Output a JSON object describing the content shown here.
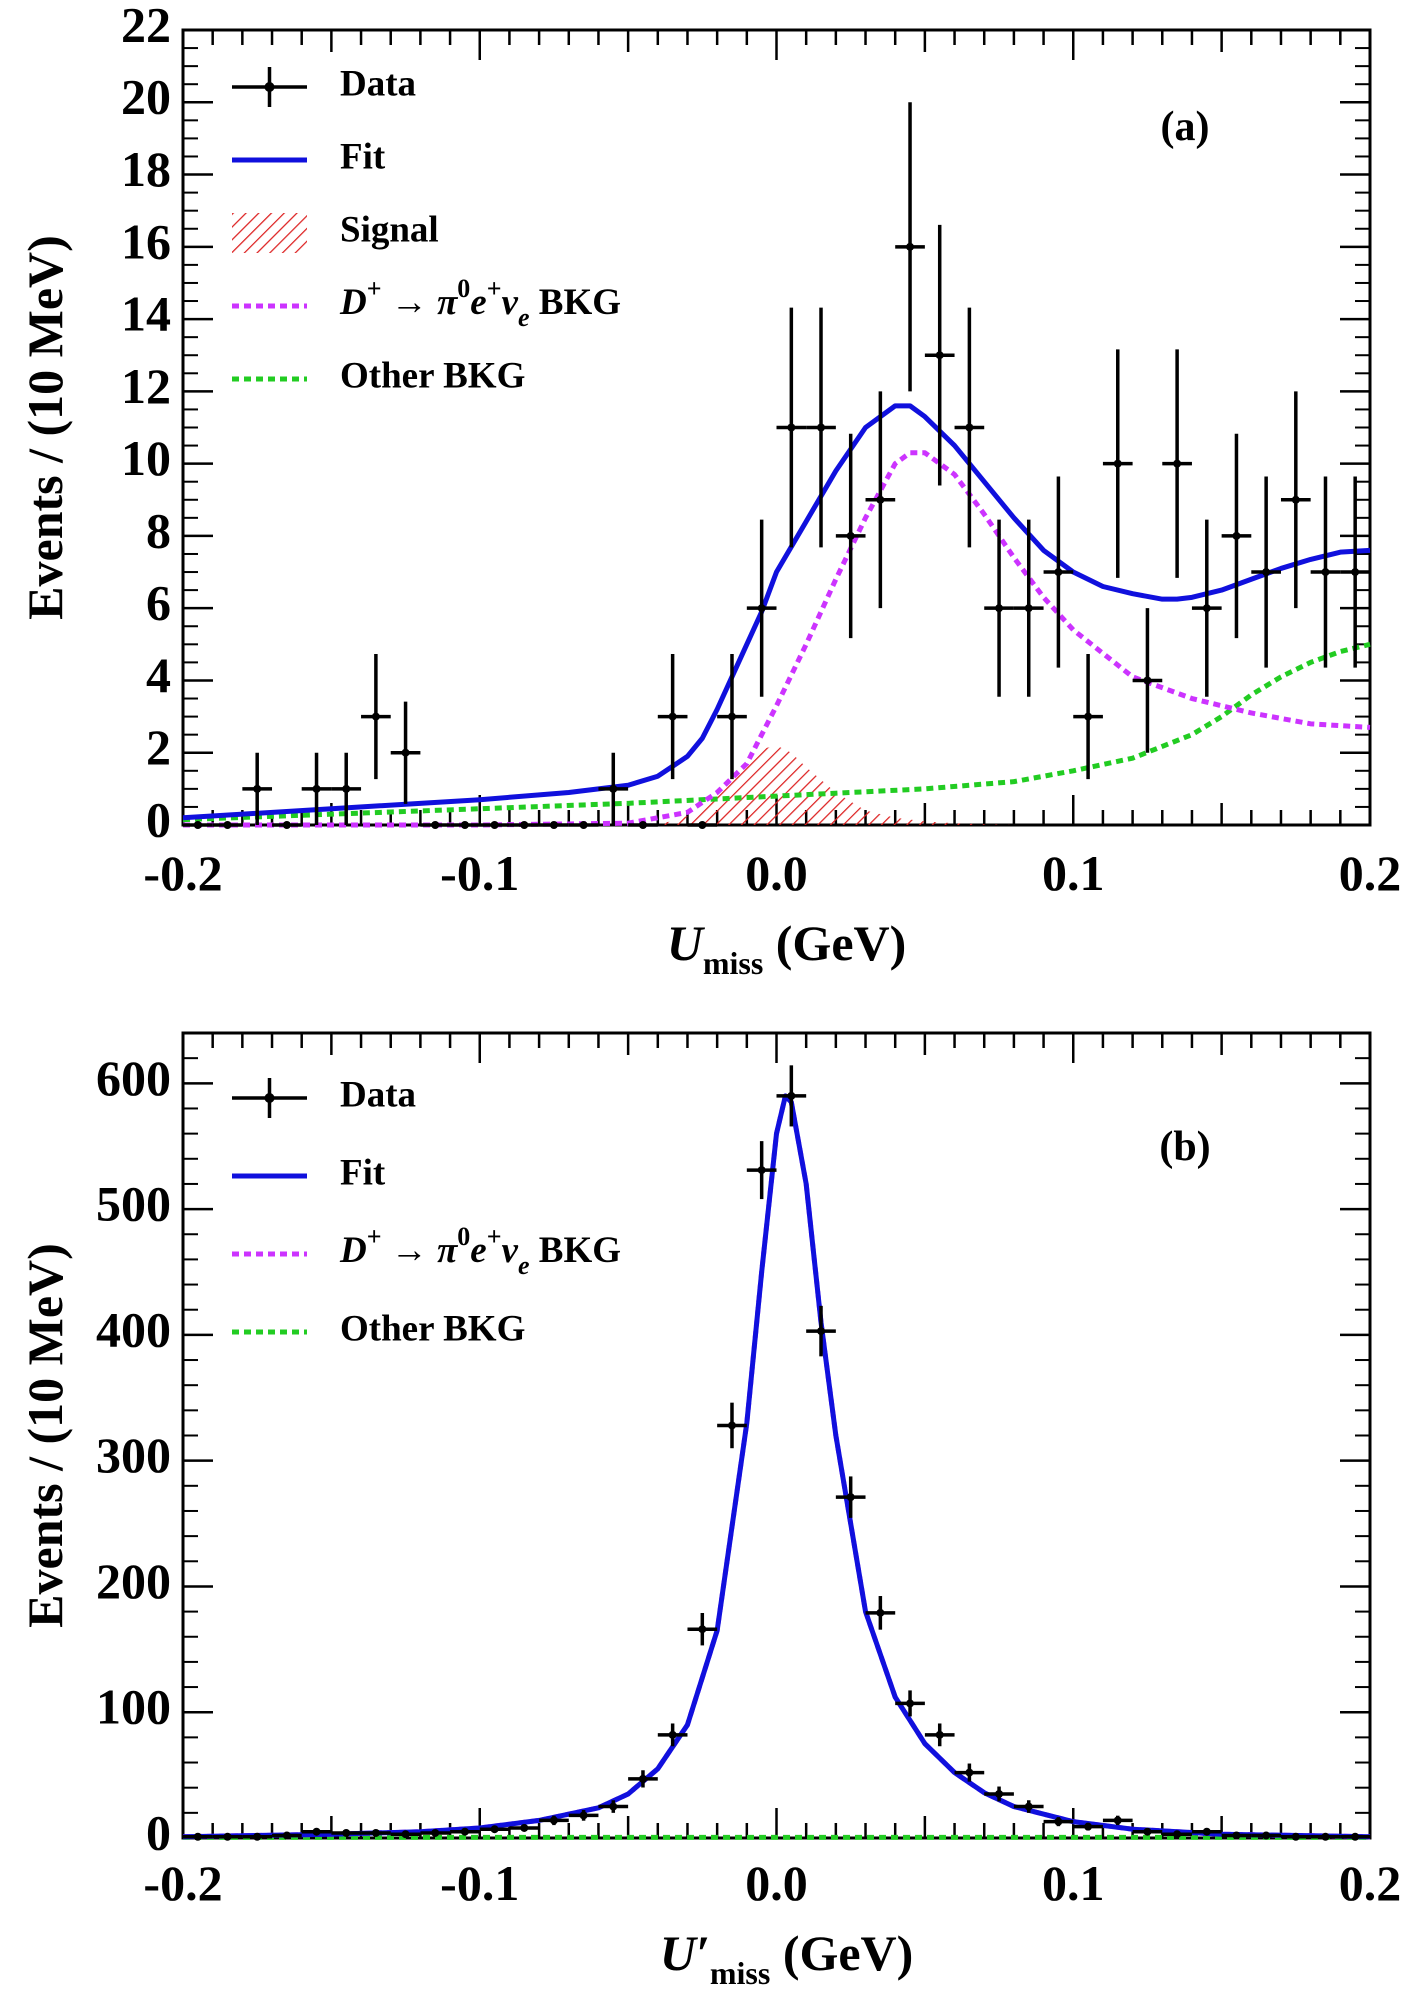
{
  "chart_data": [
    {
      "type": "scatter",
      "panel_label": "(a)",
      "xlabel": {
        "main": "U",
        "sub": "miss",
        "unit": " (GeV)"
      },
      "ylabel": "Events / (10 MeV)",
      "xlim": [
        -0.2,
        0.2
      ],
      "ylim": [
        0,
        22
      ],
      "xticks": [
        -0.2,
        -0.1,
        0.0,
        0.1,
        0.2
      ],
      "xtick_labels": [
        "-0.2",
        "-0.1",
        "0.0",
        "0.1",
        "0.2"
      ],
      "yticks": [
        0,
        2,
        4,
        6,
        8,
        10,
        12,
        14,
        16,
        18,
        20,
        22
      ],
      "ytick_labels": [
        "0",
        "2",
        "4",
        "6",
        "8",
        "10",
        "12",
        "14",
        "16",
        "18",
        "20",
        "22"
      ],
      "legend_position": "top-left",
      "legend": [
        {
          "key": "data",
          "label": "Data",
          "style": "marker"
        },
        {
          "key": "fit",
          "label": "Fit",
          "style": "solid"
        },
        {
          "key": "signal",
          "label": "Signal",
          "style": "hatch"
        },
        {
          "key": "pi0bkg",
          "label": "D+ → π0e+νe BKG",
          "style": "dotted"
        },
        {
          "key": "other",
          "label": "Other BKG",
          "style": "dotted"
        }
      ],
      "data_points": {
        "x": [
          -0.195,
          -0.185,
          -0.175,
          -0.165,
          -0.155,
          -0.145,
          -0.135,
          -0.125,
          -0.115,
          -0.105,
          -0.095,
          -0.085,
          -0.075,
          -0.065,
          -0.055,
          -0.045,
          -0.035,
          -0.025,
          -0.015,
          -0.005,
          0.005,
          0.015,
          0.025,
          0.035,
          0.045,
          0.055,
          0.065,
          0.075,
          0.085,
          0.095,
          0.105,
          0.115,
          0.125,
          0.135,
          0.145,
          0.155,
          0.165,
          0.175,
          0.185,
          0.195
        ],
        "y": [
          0,
          0,
          1,
          0,
          1,
          1,
          3,
          2,
          0,
          0,
          0,
          0,
          0,
          0,
          1,
          0,
          3,
          0,
          3,
          6,
          11,
          11,
          8,
          9,
          16,
          13,
          11,
          6,
          6,
          7,
          3,
          10,
          4,
          10,
          6,
          8,
          7,
          9,
          7,
          7
        ]
      },
      "series": [
        {
          "name": "Fit",
          "color": "#1010dd",
          "x": [
            -0.2,
            -0.15,
            -0.1,
            -0.07,
            -0.05,
            -0.04,
            -0.03,
            -0.025,
            -0.02,
            -0.015,
            -0.01,
            -0.005,
            0.0,
            0.01,
            0.02,
            0.03,
            0.04,
            0.045,
            0.05,
            0.06,
            0.07,
            0.08,
            0.09,
            0.1,
            0.11,
            0.12,
            0.13,
            0.135,
            0.14,
            0.15,
            0.16,
            0.17,
            0.18,
            0.19,
            0.2
          ],
          "y": [
            0.2,
            0.45,
            0.7,
            0.9,
            1.1,
            1.35,
            1.9,
            2.4,
            3.2,
            4.1,
            5.0,
            5.9,
            7.0,
            8.4,
            9.8,
            11.0,
            11.6,
            11.6,
            11.3,
            10.5,
            9.5,
            8.5,
            7.6,
            7.0,
            6.6,
            6.4,
            6.25,
            6.25,
            6.3,
            6.5,
            6.8,
            7.1,
            7.35,
            7.55,
            7.6
          ]
        },
        {
          "name": "D+ → π0e+νe BKG",
          "color": "#cc33ff",
          "x": [
            -0.2,
            -0.1,
            -0.05,
            -0.03,
            -0.02,
            -0.01,
            0.0,
            0.01,
            0.02,
            0.03,
            0.04,
            0.045,
            0.05,
            0.06,
            0.07,
            0.08,
            0.09,
            0.1,
            0.12,
            0.14,
            0.16,
            0.18,
            0.2
          ],
          "y": [
            0,
            0,
            0.05,
            0.35,
            0.9,
            1.7,
            3.3,
            5.0,
            6.8,
            8.5,
            10.0,
            10.3,
            10.3,
            9.7,
            8.6,
            7.4,
            6.3,
            5.4,
            4.1,
            3.5,
            3.1,
            2.8,
            2.7
          ]
        },
        {
          "name": "Other BKG",
          "color": "#22cc22",
          "x": [
            -0.2,
            -0.15,
            -0.1,
            -0.05,
            0.0,
            0.05,
            0.08,
            0.1,
            0.12,
            0.14,
            0.15,
            0.16,
            0.17,
            0.18,
            0.19,
            0.2
          ],
          "y": [
            0.15,
            0.3,
            0.45,
            0.6,
            0.8,
            1.0,
            1.2,
            1.5,
            1.85,
            2.5,
            3.0,
            3.6,
            4.1,
            4.5,
            4.8,
            5.0
          ]
        }
      ],
      "signal": {
        "name": "Signal",
        "color": "#dd2222",
        "x": [
          -0.045,
          -0.035,
          -0.025,
          -0.015,
          -0.01,
          -0.005,
          0.0,
          0.005,
          0.01,
          0.02,
          0.03,
          0.04,
          0.05,
          0.06,
          0.07,
          0.08
        ],
        "y": [
          0,
          0.1,
          0.4,
          1.2,
          1.7,
          2.1,
          2.2,
          2.0,
          1.6,
          0.9,
          0.4,
          0.2,
          0.1,
          0.05,
          0.02,
          0
        ]
      }
    },
    {
      "type": "scatter",
      "panel_label": "(b)",
      "xlabel": {
        "main": "U′",
        "sub": "miss",
        "unit": " (GeV)"
      },
      "ylabel": "Events / (10 MeV)",
      "xlim": [
        -0.2,
        0.2
      ],
      "ylim": [
        0,
        640
      ],
      "xticks": [
        -0.2,
        -0.1,
        0.0,
        0.1,
        0.2
      ],
      "xtick_labels": [
        "-0.2",
        "-0.1",
        "0.0",
        "0.1",
        "0.2"
      ],
      "yticks": [
        0,
        100,
        200,
        300,
        400,
        500,
        600
      ],
      "ytick_labels": [
        "0",
        "100",
        "200",
        "300",
        "400",
        "500",
        "600"
      ],
      "legend_position": "top-left",
      "legend": [
        {
          "key": "data",
          "label": "Data",
          "style": "marker"
        },
        {
          "key": "fit",
          "label": "Fit",
          "style": "solid"
        },
        {
          "key": "pi0bkg",
          "label": "D+ → π0e+νe BKG",
          "style": "dotted"
        },
        {
          "key": "other",
          "label": "Other BKG",
          "style": "dotted"
        }
      ],
      "data_points": {
        "x": [
          -0.195,
          -0.185,
          -0.175,
          -0.165,
          -0.155,
          -0.145,
          -0.135,
          -0.125,
          -0.115,
          -0.105,
          -0.095,
          -0.085,
          -0.075,
          -0.065,
          -0.055,
          -0.045,
          -0.035,
          -0.025,
          -0.015,
          -0.005,
          0.005,
          0.015,
          0.025,
          0.035,
          0.045,
          0.055,
          0.065,
          0.075,
          0.085,
          0.095,
          0.105,
          0.115,
          0.125,
          0.135,
          0.145,
          0.155,
          0.165,
          0.175,
          0.185,
          0.195
        ],
        "y": [
          1,
          1,
          1,
          2,
          5,
          4,
          4,
          3,
          4,
          5,
          7,
          8,
          14,
          18,
          25,
          47,
          82,
          166,
          328,
          531,
          590,
          403,
          271,
          179,
          107,
          82,
          52,
          35,
          25,
          13,
          9,
          14,
          5,
          3,
          5,
          2,
          2,
          1,
          1,
          1
        ]
      },
      "series": [
        {
          "name": "Fit",
          "color": "#1010dd",
          "x": [
            -0.2,
            -0.15,
            -0.12,
            -0.1,
            -0.08,
            -0.06,
            -0.05,
            -0.04,
            -0.03,
            -0.02,
            -0.01,
            -0.005,
            0.0,
            0.003,
            0.005,
            0.01,
            0.015,
            0.02,
            0.03,
            0.04,
            0.05,
            0.06,
            0.07,
            0.08,
            0.1,
            0.12,
            0.15,
            0.2
          ],
          "y": [
            1,
            3,
            5,
            8,
            14,
            24,
            35,
            55,
            90,
            165,
            330,
            450,
            560,
            590,
            585,
            520,
            410,
            320,
            180,
            112,
            75,
            52,
            36,
            25,
            13,
            7,
            3,
            1
          ]
        },
        {
          "name": "D+ → π0e+νe BKG",
          "color": "#cc33ff",
          "x": [
            -0.2,
            -0.15,
            -0.12,
            -0.1,
            -0.08,
            -0.06,
            -0.05,
            -0.04,
            -0.03,
            -0.02,
            -0.01,
            -0.005,
            0.0,
            0.003,
            0.005,
            0.01,
            0.015,
            0.02,
            0.03,
            0.04,
            0.05,
            0.06,
            0.07,
            0.08,
            0.1,
            0.12,
            0.15,
            0.2
          ],
          "y": [
            1,
            3,
            5,
            8,
            14,
            24,
            35,
            55,
            90,
            165,
            330,
            450,
            560,
            590,
            585,
            520,
            410,
            320,
            180,
            112,
            75,
            52,
            36,
            25,
            13,
            7,
            3,
            1
          ]
        },
        {
          "name": "Other BKG",
          "color": "#22cc22",
          "x": [
            -0.2,
            0.2
          ],
          "y": [
            0.5,
            0.5
          ]
        }
      ]
    }
  ]
}
